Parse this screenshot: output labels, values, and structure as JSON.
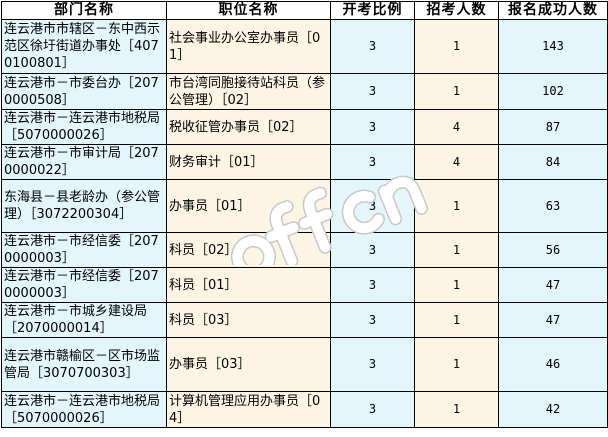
{
  "headers": [
    "部门名称",
    "职位名称",
    "开考比例",
    "招考人数",
    "报名成功人数"
  ],
  "rows": [
    {
      "dept": "连云港市市辖区－东中西示范区徐圩街道办事处［4070100801］",
      "pos": "社会事业办公室办事员［01］",
      "ratio": "3",
      "recruit": "1",
      "success": "143"
    },
    {
      "dept": "连云港市－市委台办［2070000508］",
      "pos": "市台湾同胞接待站科员（参公管理）［02］",
      "ratio": "3",
      "recruit": "1",
      "success": "102"
    },
    {
      "dept": "连云港市－连云港市地税局［5070000026］",
      "pos": "税收征管办事员［02］",
      "ratio": "3",
      "recruit": "4",
      "success": "87"
    },
    {
      "dept": "连云港市－市审计局［2070000022］",
      "pos": "财务审计［01］",
      "ratio": "3",
      "recruit": "4",
      "success": "84"
    },
    {
      "dept": "东海县－县老龄办（参公管理）［3072200304］",
      "pos": "办事员［01］",
      "ratio": "3",
      "recruit": "1",
      "success": "63"
    },
    {
      "dept": "连云港市－市经信委［2070000003］",
      "pos": "科员［02］",
      "ratio": "3",
      "recruit": "1",
      "success": "56"
    },
    {
      "dept": "连云港市－市经信委［2070000003］",
      "pos": "科员［01］",
      "ratio": "3",
      "recruit": "1",
      "success": "47"
    },
    {
      "dept": "连云港市－市城乡建设局［2070000014］",
      "pos": "科员［03］",
      "ratio": "3",
      "recruit": "1",
      "success": "47"
    },
    {
      "dept": "连云港市赣榆区－区市场监管局［3070700303］",
      "pos": "办事员［03］",
      "ratio": "3",
      "recruit": "1",
      "success": "46"
    },
    {
      "dept": "连云港市－连云港市地税局［5070000026］",
      "pos": "计算机管理应用办事员［04］",
      "ratio": "3",
      "recruit": "1",
      "success": "42"
    }
  ],
  "watermark": "offcn"
}
